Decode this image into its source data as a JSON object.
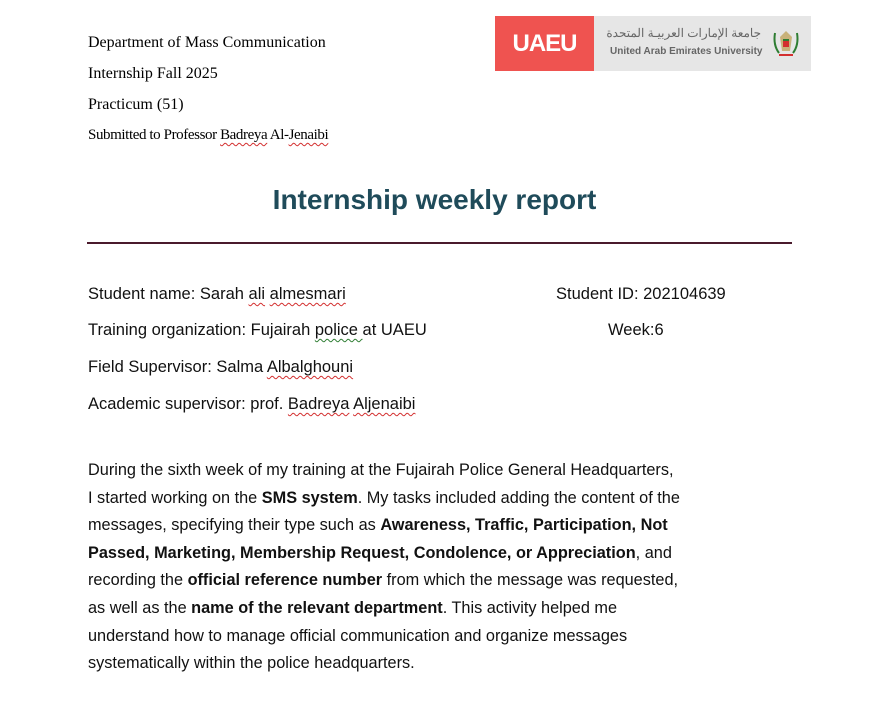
{
  "header": {
    "department": "Department of Mass Communication",
    "term": "Internship Fall 2025",
    "course": "Practicum (51)",
    "submitted_prefix": "Submitted to Professor ",
    "submitted_name_1": "Badreya",
    "submitted_name_2": " Al-",
    "submitted_name_3": "Jenaibi"
  },
  "logo": {
    "mark": "UAEU",
    "arabic": "جامعة الإمارات العربيـة المتحدة",
    "english": "United Arab Emirates University",
    "colors": {
      "red": "#ef5350",
      "grey": "#e6e6e6"
    }
  },
  "title": "Internship weekly report",
  "info": {
    "student_name_label": "Student name: Sarah ",
    "student_name_ali": "ali",
    "student_name_last": "almesmari",
    "student_id": "Student ID: 202104639",
    "org_prefix": "Training organization: Fujairah ",
    "org_police": "police ",
    "org_suffix": " at UAEU",
    "week": "Week:6",
    "field_prefix": "Field Supervisor: Salma ",
    "field_last": "Albalghouni",
    "academic_prefix": "Academic supervisor: prof. ",
    "academic_first": "Badreya",
    "academic_last": "Aljenaibi"
  },
  "paragraph": {
    "l1": "During the sixth week of my training at the Fujairah Police General Headquarters,",
    "l2a": "I started working on the ",
    "l2b": "SMS system",
    "l2c": ". My tasks included adding the content of the",
    "l3a": "messages, specifying their type such as ",
    "l3b": "Awareness, Traffic, Participation,  Not",
    "l4a": "Passed, Marketing, Membership Request, Condolence, or Appreciation",
    "l4b": ", and",
    "l5a": "recording the ",
    "l5b": "official reference number",
    "l5c": " from which the message was requested,",
    "l6a": "as well as the ",
    "l6b": "name of the relevant department",
    "l6c": ". This activity helped me",
    "l7": "understand how to manage official communication and organize messages",
    "l8": "systematically within the police headquarters."
  }
}
